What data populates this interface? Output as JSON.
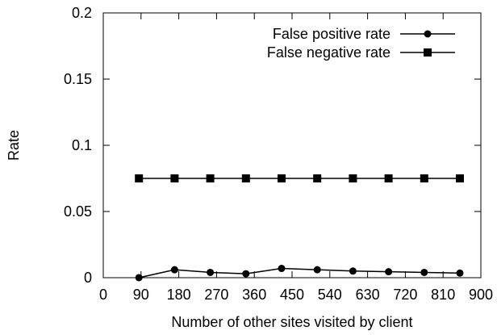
{
  "chart_data": {
    "type": "line",
    "xlabel": "Number of other sites visited by client",
    "ylabel": "Rate",
    "xlim": [
      0,
      900
    ],
    "ylim": [
      0,
      0.2
    ],
    "x_ticks": [
      0,
      90,
      180,
      270,
      360,
      450,
      540,
      630,
      720,
      810,
      900
    ],
    "x_tick_labels": [
      "0",
      "90",
      "180",
      "270",
      "360",
      "450",
      "540",
      "630",
      "720",
      "810",
      "900"
    ],
    "y_ticks": [
      0,
      0.05,
      0.1,
      0.15,
      0.2
    ],
    "y_tick_labels": [
      "0",
      "0.05",
      "0.1",
      "0.15",
      "0.2"
    ],
    "grid": false,
    "legend_position": "top-right",
    "x": [
      85,
      170,
      255,
      340,
      425,
      510,
      595,
      680,
      765,
      850
    ],
    "series": [
      {
        "name": "False positive rate",
        "marker": "circle",
        "values": [
          0.0,
          0.006,
          0.004,
          0.003,
          0.007,
          0.006,
          0.005,
          0.0045,
          0.004,
          0.0035
        ]
      },
      {
        "name": "False negative rate",
        "marker": "square",
        "values": [
          0.075,
          0.075,
          0.075,
          0.075,
          0.075,
          0.075,
          0.075,
          0.075,
          0.075,
          0.075
        ]
      }
    ],
    "colors": {
      "line": "#000000",
      "axis": "#000000",
      "background": "#ffffff"
    }
  }
}
